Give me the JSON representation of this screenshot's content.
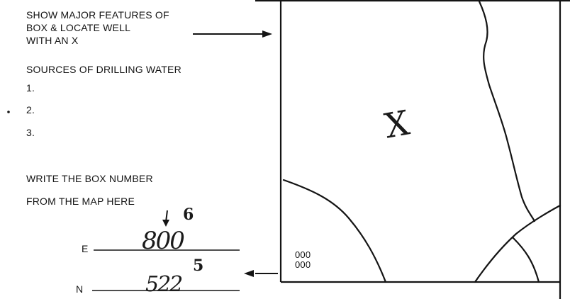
{
  "instructions": {
    "line1": "SHOW MAJOR FEATURES OF",
    "line2": "BOX & LOCATE WELL",
    "line3": "WITH AN X"
  },
  "drilling_water": {
    "heading": "SOURCES OF DRILLING WATER",
    "items": [
      "1.",
      "2.",
      "3."
    ]
  },
  "box_number": {
    "line1": "WRITE THE BOX NUMBER",
    "line2": "FROM THE MAP HERE"
  },
  "coordinates": {
    "e_label": "E",
    "e_value": "800",
    "e_note": "6",
    "n_label": "N",
    "n_value": "522",
    "n_note": "5"
  },
  "map": {
    "well_marker": "X",
    "corner_code_1": "000",
    "corner_code_2": "000"
  },
  "colors": {
    "ink": "#141414",
    "paper": "#ffffff"
  }
}
